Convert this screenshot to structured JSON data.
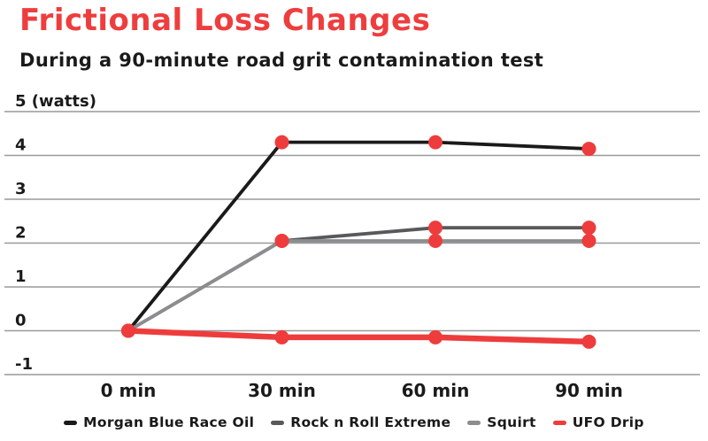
{
  "colors": {
    "accent_red": "#ee3d3e",
    "text": "#1a1a1a",
    "grid": "#999999",
    "background": "#ffffff"
  },
  "chart_data": {
    "type": "line",
    "title": "Frictional Loss Changes",
    "subtitle": "During a 90-minute road grit contamination test",
    "unit": "watts",
    "x": [
      0,
      30,
      60,
      90
    ],
    "categories": [
      "0 min",
      "30 min",
      "60 min",
      "90 min"
    ],
    "ylim": [
      -1.5,
      5.5
    ],
    "grid": "horizontal",
    "legend_position": "bottom",
    "yticks": [
      {
        "value": 5,
        "label": "5 (watts)"
      },
      {
        "value": 4,
        "label": "4"
      },
      {
        "value": 3,
        "label": "3"
      },
      {
        "value": 2,
        "label": "2"
      },
      {
        "value": 1,
        "label": "1"
      },
      {
        "value": 0,
        "label": "0"
      },
      {
        "value": -1,
        "label": "-1"
      }
    ],
    "series": [
      {
        "name": "Morgan Blue Race Oil",
        "color": "#1a1a1a",
        "line_width": 3.8,
        "values": [
          0,
          4.3,
          4.3,
          4.15
        ]
      },
      {
        "name": "Rock n Roll Extreme",
        "color": "#58595b",
        "line_width": 3.8,
        "values": [
          0,
          2.05,
          2.35,
          2.35
        ]
      },
      {
        "name": "Squirt",
        "color": "#8b8d8e",
        "line_width": 3.8,
        "values": [
          0,
          2.05,
          2.05,
          2.05
        ]
      },
      {
        "name": "UFO Drip",
        "color": "#ee3c3c",
        "line_width": 6.5,
        "values": [
          0,
          -0.15,
          -0.15,
          -0.25
        ]
      }
    ],
    "marker": {
      "color": "#ee3c3c",
      "radius": 8
    }
  }
}
